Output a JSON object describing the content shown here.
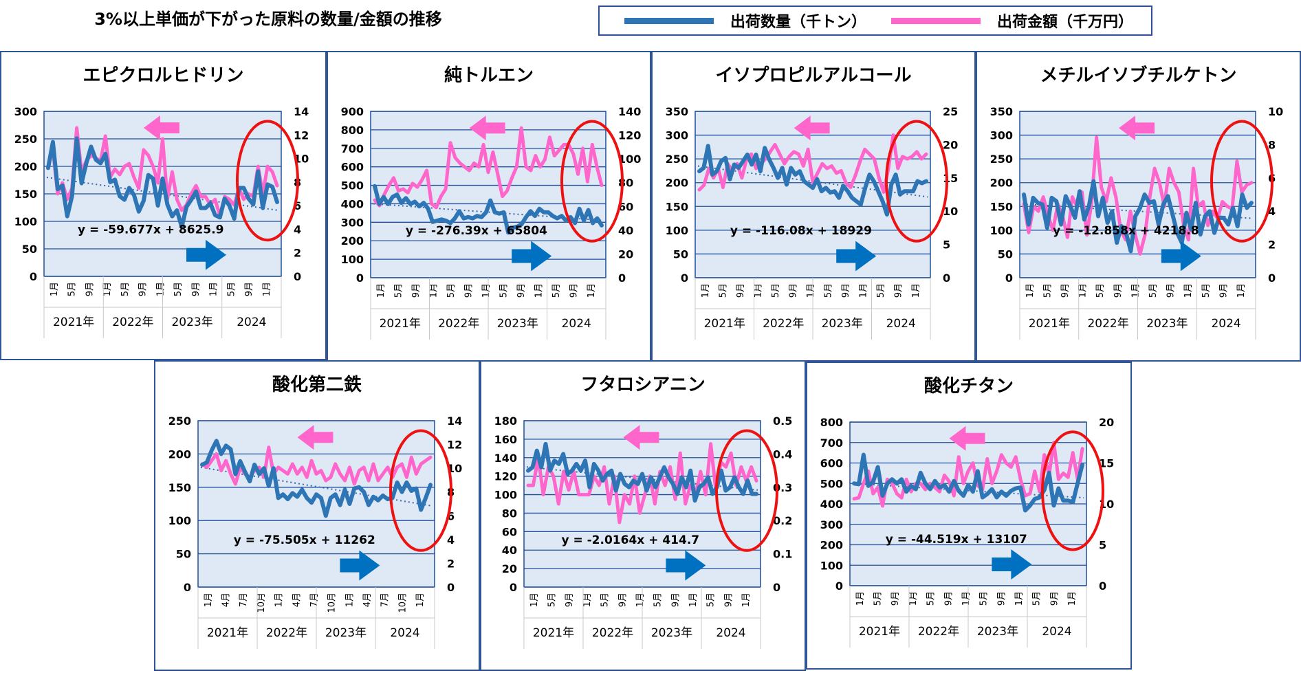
{
  "title": "3%以上単価が下がった原料の数量/金額の推移",
  "legend": [
    {
      "name": "出荷数量（千トン）",
      "color": "#2e75b6"
    },
    {
      "name": "出荷金額（千万円）",
      "color": "#ff66cc"
    }
  ],
  "chart_data": [
    {
      "type": "line",
      "title": "エピクロルヒドリン",
      "ylim_left": [
        0,
        300
      ],
      "yticks_left": [
        0,
        50,
        100,
        150,
        200,
        250,
        300
      ],
      "ylim_right": [
        0,
        14
      ],
      "yticks_right": [
        0,
        2,
        4,
        6,
        8,
        10,
        12,
        14
      ],
      "month_labels": [
        "1月",
        "5月",
        "9月",
        "1月",
        "5月",
        "9月",
        "1月",
        "5月",
        "9月",
        "1月",
        "5月",
        "9月",
        "1月"
      ],
      "year_labels": [
        "2021年",
        "2022年",
        "2023年",
        "2024"
      ],
      "equation": "y = -59.677x + 8625.9",
      "trend": [
        180,
        120
      ],
      "series": [
        {
          "name": "出荷数量（千トン）",
          "axis": "right",
          "values": [
            9.2,
            11.4,
            7.4,
            7.7,
            5.1,
            6.8,
            11.7,
            7.9,
            9.6,
            11.0,
            9.9,
            9.6,
            10.4,
            8.0,
            8.2,
            6.8,
            6.5,
            7.5,
            6.9,
            5.5,
            6.4,
            8.6,
            8.3,
            6.0,
            8.3,
            6.1,
            5.1,
            5.6,
            4.2,
            5.9,
            6.5,
            7.2,
            5.8,
            5.8,
            6.2,
            5.2,
            5.0,
            6.6,
            6.0,
            4.9,
            7.5,
            7.5,
            6.6,
            6.1,
            8.9,
            5.8,
            7.8,
            7.6,
            6.3
          ]
        },
        {
          "name": "出荷金額（千万円）",
          "axis": "left",
          "values": [
            200,
            230,
            150,
            170,
            140,
            160,
            270,
            190,
            210,
            220,
            215,
            210,
            255,
            180,
            195,
            185,
            200,
            205,
            180,
            160,
            230,
            220,
            200,
            170,
            250,
            140,
            190,
            140,
            120,
            130,
            150,
            165,
            145,
            145,
            130,
            140,
            110,
            145,
            140,
            130,
            160,
            140,
            150,
            145,
            200,
            150,
            200,
            190,
            165
          ]
        }
      ]
    },
    {
      "type": "line",
      "title": "純トルエン",
      "ylim_left": [
        0,
        900
      ],
      "yticks_left": [
        0,
        100,
        200,
        300,
        400,
        500,
        600,
        700,
        800,
        900
      ],
      "ylim_right": [
        0,
        140
      ],
      "yticks_right": [
        0,
        20,
        40,
        60,
        80,
        100,
        120,
        140
      ],
      "month_labels": [
        "1月",
        "5月",
        "9月",
        "1月",
        "5月",
        "9月",
        "1月",
        "5月",
        "9月",
        "1月",
        "5月",
        "9月",
        "1月"
      ],
      "year_labels": [
        "2021年",
        "2022年",
        "2023年",
        "2024"
      ],
      "equation": "y = -276.39x + 65804",
      "trend": [
        400,
        310
      ],
      "series": [
        {
          "name": "出荷数量（千トン）",
          "axis": "right",
          "values": [
            77,
            62,
            68,
            62,
            68,
            70,
            63,
            67,
            62,
            64,
            60,
            63,
            58,
            47,
            48,
            49,
            48,
            46,
            50,
            56,
            50,
            51,
            50,
            52,
            51,
            55,
            65,
            55,
            54,
            55,
            38,
            42,
            43,
            45,
            51,
            56,
            52,
            58,
            55,
            55,
            52,
            50,
            52,
            48,
            51,
            46,
            58,
            48,
            57,
            46,
            50,
            44
          ]
        },
        {
          "name": "出荷金額（千万円）",
          "axis": "left",
          "values": [
            420,
            390,
            450,
            500,
            540,
            470,
            480,
            460,
            510,
            490,
            530,
            580,
            400,
            380,
            440,
            480,
            730,
            650,
            620,
            600,
            580,
            620,
            600,
            720,
            570,
            680,
            560,
            440,
            470,
            540,
            600,
            810,
            600,
            580,
            660,
            600,
            640,
            760,
            660,
            690,
            720,
            720,
            670,
            560,
            700,
            520,
            720,
            600,
            500
          ]
        }
      ]
    },
    {
      "type": "line",
      "title": "イソプロピルアルコール",
      "ylim_left": [
        0,
        350
      ],
      "yticks_left": [
        0,
        50,
        100,
        150,
        200,
        250,
        300,
        350
      ],
      "ylim_right": [
        0,
        25
      ],
      "yticks_right": [
        0,
        5,
        10,
        15,
        20,
        25
      ],
      "month_labels": [
        "1月",
        "5月",
        "9月",
        "1月",
        "5月",
        "9月",
        "1月",
        "5月",
        "9月",
        "1月",
        "5月",
        "9月",
        "1月"
      ],
      "year_labels": [
        "2021年",
        "2022年",
        "2023年",
        "2024"
      ],
      "equation": "y = -116.08x + 18929",
      "trend": [
        235,
        170
      ],
      "series": [
        {
          "name": "出荷数量（千トン）",
          "axis": "right",
          "values": [
            16,
            16.5,
            19.8,
            15.5,
            16,
            17.5,
            18,
            14.8,
            17,
            16.5,
            17.5,
            18.5,
            17,
            18.5,
            16,
            19.5,
            17.8,
            16.5,
            15,
            16.5,
            14,
            16.5,
            15.5,
            16,
            14.5,
            14,
            13.5,
            14.8,
            13,
            13.5,
            12.8,
            13,
            12,
            13.8,
            13,
            12,
            11.5,
            11,
            13.5,
            15.5,
            14.5,
            13,
            11.5,
            9.5,
            14,
            15.5,
            12.5,
            13,
            13,
            13,
            14.5,
            14.2,
            14.5
          ]
        },
        {
          "name": "出荷金額（千万円）",
          "axis": "left",
          "values": [
            185,
            195,
            230,
            210,
            230,
            190,
            240,
            225,
            240,
            210,
            250,
            260,
            230,
            240,
            250,
            265,
            280,
            260,
            240,
            255,
            265,
            260,
            235,
            270,
            200,
            220,
            240,
            230,
            235,
            220,
            225,
            200,
            190,
            215,
            245,
            270,
            260,
            250,
            210,
            180,
            230,
            300,
            230,
            255,
            250,
            255,
            265,
            250,
            260
          ]
        }
      ]
    },
    {
      "type": "line",
      "title": "メチルイソブチルケトン",
      "ylim_left": [
        0,
        350
      ],
      "yticks_left": [
        0,
        50,
        100,
        150,
        200,
        250,
        300,
        350
      ],
      "ylim_right": [
        0,
        10
      ],
      "yticks_right": [
        0,
        2,
        4,
        6,
        8,
        10
      ],
      "month_labels": [
        "1月",
        "5月",
        "9月",
        "1月",
        "5月",
        "9月",
        "1月",
        "5月",
        "9月",
        "1月",
        "5月",
        "9月",
        "1月"
      ],
      "year_labels": [
        "2021年",
        "2022年",
        "2023年",
        "2024"
      ],
      "equation": "y = -12.858x + 4218.8",
      "trend": [
        155,
        125
      ],
      "series": [
        {
          "name": "出荷数量（千トン）",
          "axis": "right",
          "values": [
            5,
            3.2,
            4.8,
            4.5,
            4.4,
            3,
            4.8,
            4.6,
            3.2,
            4.9,
            4.3,
            3.6,
            5.2,
            3.5,
            4.3,
            5.8,
            3.7,
            4.8,
            3.3,
            4.0,
            2.1,
            3.1,
            2.7,
            1.6,
            3.7,
            4.2,
            5.0,
            4.5,
            4.6,
            3.2,
            4.4,
            4.9,
            3.8,
            2.7,
            2.1,
            3.9,
            2.9,
            4.5,
            2.6,
            3.7,
            4.0,
            2.7,
            3.6,
            3.6,
            3.2,
            4.2,
            3.1,
            5.0,
            4.2,
            4.5
          ]
        },
        {
          "name": "出荷金額（千万円）",
          "axis": "left",
          "values": [
            155,
            95,
            150,
            140,
            170,
            130,
            100,
            155,
            130,
            85,
            170,
            150,
            180,
            90,
            160,
            295,
            190,
            160,
            210,
            170,
            100,
            80,
            140,
            90,
            50,
            90,
            170,
            230,
            200,
            150,
            230,
            200,
            180,
            110,
            80,
            230,
            150,
            160,
            110,
            140,
            125,
            160,
            150,
            145,
            245,
            180,
            195,
            200
          ]
        }
      ]
    },
    {
      "type": "line",
      "title": "酸化第二鉄",
      "ylim_left": [
        0,
        250
      ],
      "yticks_left": [
        0,
        50,
        100,
        150,
        200,
        250
      ],
      "ylim_right": [
        0,
        14
      ],
      "yticks_right": [
        0,
        2,
        4,
        6,
        8,
        10,
        12,
        14
      ],
      "month_labels": [
        "1月",
        "4月",
        "7月",
        "10月",
        "1月",
        "4月",
        "7月",
        "10月",
        "1月",
        "4月",
        "7月",
        "10月",
        "1月"
      ],
      "year_labels": [
        "2021年",
        "2022年",
        "2023年",
        "2024"
      ],
      "equation": "y = -75.505x + 11262",
      "trend": [
        180,
        122
      ],
      "series": [
        {
          "name": "出荷数量（千トン）",
          "axis": "right",
          "values": [
            10.3,
            10.5,
            11.5,
            12.3,
            11.2,
            11.9,
            11.6,
            9.5,
            10.6,
            9.7,
            8.9,
            10.3,
            9.5,
            10.0,
            8.5,
            10.0,
            7.5,
            7.8,
            7.4,
            7.9,
            7.6,
            8.2,
            7.5,
            7.1,
            7.8,
            7.5,
            6.0,
            7.5,
            7.8,
            6.9,
            8.2,
            7.0,
            8.3,
            8.4,
            8.0,
            6.9,
            7.6,
            7.3,
            7.7,
            7.4,
            7.5,
            8.8,
            8.0,
            8.8,
            8.1,
            8.3,
            6.5,
            7.5,
            8.6
          ]
        },
        {
          "name": "出荷金額（千万円）",
          "axis": "left",
          "values": [
            185,
            180,
            190,
            200,
            175,
            190,
            170,
            155,
            180,
            170,
            165,
            175,
            180,
            165,
            210,
            170,
            180,
            175,
            170,
            185,
            170,
            180,
            165,
            190,
            170,
            175,
            160,
            165,
            185,
            170,
            160,
            180,
            155,
            175,
            180,
            160,
            185,
            160,
            170,
            180,
            165,
            180,
            185,
            165,
            195,
            170,
            185,
            190,
            195
          ]
        }
      ]
    },
    {
      "type": "line",
      "title": "フタロシアニン",
      "ylim_left": [
        0,
        180
      ],
      "yticks_left": [
        0,
        20,
        40,
        60,
        80,
        100,
        120,
        140,
        160,
        180
      ],
      "ylim_right": [
        0,
        0.5
      ],
      "yticks_right": [
        0,
        0.1,
        0.2,
        0.3,
        0.4,
        0.5
      ],
      "month_labels": [
        "1月",
        "5月",
        "9月",
        "1月",
        "5月",
        "9月",
        "1月",
        "5月",
        "9月",
        "1月",
        "5月",
        "9月",
        "1月"
      ],
      "year_labels": [
        "2021年",
        "2022年",
        "2023年",
        "2024"
      ],
      "equation": "y = -2.0164x + 414.7",
      "trend": [
        130,
        105
      ],
      "series": [
        {
          "name": "出荷数量（千トン）",
          "axis": "right",
          "values": [
            0.35,
            0.36,
            0.41,
            0.36,
            0.43,
            0.35,
            0.38,
            0.37,
            0.4,
            0.34,
            0.35,
            0.37,
            0.35,
            0.38,
            0.3,
            0.37,
            0.35,
            0.32,
            0.34,
            0.35,
            0.29,
            0.34,
            0.31,
            0.3,
            0.32,
            0.31,
            0.34,
            0.29,
            0.33,
            0.3,
            0.33,
            0.36,
            0.33,
            0.31,
            0.28,
            0.33,
            0.3,
            0.35,
            0.26,
            0.3,
            0.31,
            0.33,
            0.28,
            0.3,
            0.35,
            0.29,
            0.3,
            0.33,
            0.3,
            0.28,
            0.32,
            0.28,
            0.28
          ]
        },
        {
          "name": "出荷金額（千万円）",
          "axis": "left",
          "values": [
            110,
            110,
            140,
            100,
            130,
            120,
            90,
            125,
            105,
            125,
            100,
            100,
            100,
            120,
            110,
            130,
            90,
            120,
            70,
            100,
            90,
            120,
            80,
            100,
            120,
            90,
            125,
            110,
            130,
            95,
            145,
            90,
            110,
            100,
            125,
            100,
            155,
            105,
            135,
            130,
            145,
            110,
            130,
            115,
            130,
            115
          ]
        }
      ]
    },
    {
      "type": "line",
      "title": "酸化チタン",
      "ylim_left": [
        0,
        800
      ],
      "yticks_left": [
        0,
        100,
        200,
        300,
        400,
        500,
        600,
        700,
        800
      ],
      "ylim_right": [
        0,
        20
      ],
      "yticks_right": [
        0,
        5,
        10,
        15,
        20
      ],
      "month_labels": [
        "1月",
        "5月",
        "9月",
        "1月",
        "5月",
        "9月",
        "1月",
        "5月",
        "9月",
        "1月",
        "5月",
        "9月",
        "1月"
      ],
      "year_labels": [
        "2021年",
        "2022年",
        "2023年",
        "2024"
      ],
      "equation": "y = -44.519x + 13107",
      "trend": [
        500,
        430
      ],
      "series": [
        {
          "name": "出荷数量（千トン）",
          "axis": "right",
          "values": [
            12.5,
            12.4,
            16,
            12.2,
            12.7,
            14.5,
            11.0,
            12.5,
            13,
            12.5,
            13,
            11.5,
            12.2,
            11.8,
            13.8,
            12.5,
            11.8,
            12.8,
            12.0,
            12.3,
            11.5,
            12.8,
            11.6,
            11.0,
            12.3,
            11.5,
            14,
            10.8,
            11.2,
            11.8,
            10.8,
            11.5,
            11.0,
            11.6,
            11.9,
            12.0,
            9.2,
            9.8,
            10.6,
            10.8,
            11.7,
            13.8,
            9.8,
            11.9,
            10.4,
            10.4,
            10.2,
            12.5,
            14.8
          ]
        },
        {
          "name": "出荷金額（千万円）",
          "axis": "left",
          "values": [
            425,
            430,
            500,
            560,
            450,
            480,
            390,
            520,
            500,
            450,
            430,
            520,
            460,
            500,
            500,
            470,
            500,
            480,
            460,
            540,
            510,
            440,
            630,
            500,
            560,
            600,
            490,
            470,
            620,
            500,
            560,
            640,
            600,
            580,
            630,
            520,
            440,
            450,
            560,
            460,
            640,
            540,
            700,
            520,
            550,
            530,
            650,
            520,
            670
          ]
        }
      ]
    }
  ]
}
